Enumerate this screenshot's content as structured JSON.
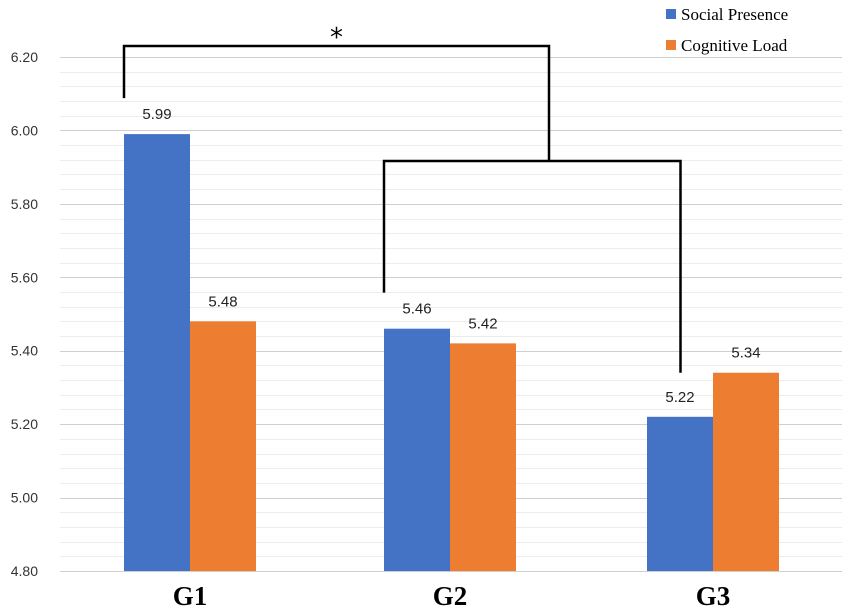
{
  "chart_data": {
    "type": "bar",
    "title": "",
    "xlabel": "",
    "ylabel": "",
    "categories": [
      "G1",
      "G2",
      "G3"
    ],
    "series": [
      {
        "name": "Social Presence",
        "color": "#4472C4",
        "values": [
          5.99,
          5.46,
          5.22
        ]
      },
      {
        "name": "Cognitive Load",
        "color": "#ED7D31",
        "values": [
          5.48,
          5.42,
          5.34
        ]
      }
    ],
    "data_labels": [
      [
        "5.99",
        "5.46",
        "5.22"
      ],
      [
        "5.48",
        "5.42",
        "5.34"
      ]
    ],
    "ylim": [
      4.8,
      6.2
    ],
    "yticks": [
      "4.80",
      "5.00",
      "5.20",
      "5.40",
      "5.60",
      "5.80",
      "6.00",
      "6.20"
    ],
    "grid": true,
    "legend": "top-right",
    "annotation": {
      "symbol": "*",
      "description": "significance bracket between G1 Social Presence and the G2-G3 Social Presence pair"
    }
  }
}
